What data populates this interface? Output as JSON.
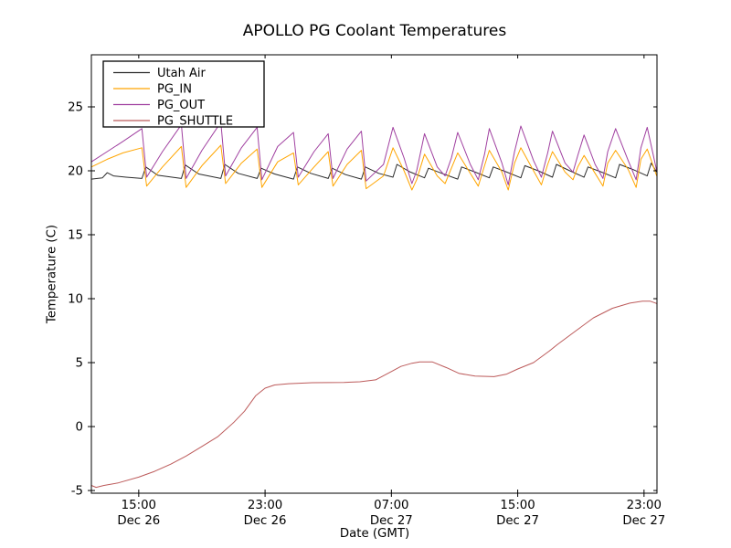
{
  "chart_data": {
    "type": "line",
    "title": "APOLLO PG Coolant Temperatures",
    "xlabel": "Date (GMT)",
    "ylabel": "Temperature (C)",
    "x_unit": "hours since Dec 26 12:00 GMT",
    "xlim": [
      0,
      35.82
    ],
    "ylim": [
      -5.21,
      29.07
    ],
    "grid": false,
    "legend_position": "upper left",
    "frame_color": "#000000",
    "background_color": "#ffffff",
    "yticks": [
      {
        "value": -5,
        "label": "-5"
      },
      {
        "value": 0,
        "label": "0"
      },
      {
        "value": 5,
        "label": "5"
      },
      {
        "value": 10,
        "label": "10"
      },
      {
        "value": 15,
        "label": "15"
      },
      {
        "value": 20,
        "label": "20"
      },
      {
        "value": 25,
        "label": "25"
      }
    ],
    "xticks": [
      {
        "t": 3,
        "time": "15:00",
        "date": "Dec 26"
      },
      {
        "t": 11,
        "time": "23:00",
        "date": "Dec 26"
      },
      {
        "t": 19,
        "time": "07:00",
        "date": "Dec 27"
      },
      {
        "t": 27,
        "time": "15:00",
        "date": "Dec 27"
      },
      {
        "t": 35,
        "time": "23:00",
        "date": "Dec 27"
      }
    ],
    "series": [
      {
        "name": "Utah Air",
        "color": "#2b2b2b",
        "points": [
          [
            0,
            19.35
          ],
          [
            0.7,
            19.45
          ],
          [
            1.0,
            19.85
          ],
          [
            1.4,
            19.6
          ],
          [
            2.2,
            19.5
          ],
          [
            3.2,
            19.4
          ],
          [
            3.45,
            20.3
          ],
          [
            4.2,
            19.65
          ],
          [
            5.7,
            19.4
          ],
          [
            5.95,
            20.45
          ],
          [
            6.8,
            19.75
          ],
          [
            8.2,
            19.4
          ],
          [
            8.45,
            20.5
          ],
          [
            9.3,
            19.8
          ],
          [
            10.5,
            19.4
          ],
          [
            10.75,
            20.2
          ],
          [
            11.6,
            19.75
          ],
          [
            12.8,
            19.35
          ],
          [
            13.05,
            20.3
          ],
          [
            13.9,
            19.8
          ],
          [
            15.0,
            19.4
          ],
          [
            15.25,
            20.2
          ],
          [
            16.1,
            19.7
          ],
          [
            17.1,
            19.35
          ],
          [
            17.35,
            20.3
          ],
          [
            18.2,
            19.8
          ],
          [
            19.1,
            19.5
          ],
          [
            19.35,
            20.5
          ],
          [
            20.2,
            19.9
          ],
          [
            21.1,
            19.45
          ],
          [
            21.35,
            20.2
          ],
          [
            22.2,
            19.8
          ],
          [
            23.2,
            19.35
          ],
          [
            23.45,
            20.3
          ],
          [
            24.3,
            19.9
          ],
          [
            25.2,
            19.45
          ],
          [
            25.45,
            20.3
          ],
          [
            26.3,
            19.9
          ],
          [
            27.2,
            19.45
          ],
          [
            27.45,
            20.4
          ],
          [
            28.3,
            20.0
          ],
          [
            29.2,
            19.5
          ],
          [
            29.45,
            20.5
          ],
          [
            30.3,
            20.0
          ],
          [
            31.2,
            19.5
          ],
          [
            31.45,
            20.3
          ],
          [
            32.3,
            19.9
          ],
          [
            33.2,
            19.45
          ],
          [
            33.45,
            20.5
          ],
          [
            34.3,
            20.1
          ],
          [
            35.2,
            19.6
          ],
          [
            35.45,
            20.6
          ],
          [
            35.8,
            19.9
          ]
        ]
      },
      {
        "name": "PG_IN",
        "color": "#ffa500",
        "points": [
          [
            0,
            20.3
          ],
          [
            1,
            20.9
          ],
          [
            2,
            21.4
          ],
          [
            3.2,
            21.8
          ],
          [
            3.5,
            18.8
          ],
          [
            4.5,
            20.3
          ],
          [
            5.7,
            21.9
          ],
          [
            6.0,
            18.7
          ],
          [
            7.0,
            20.4
          ],
          [
            8.2,
            22.0
          ],
          [
            8.5,
            19.0
          ],
          [
            9.5,
            20.6
          ],
          [
            10.5,
            21.7
          ],
          [
            10.8,
            18.7
          ],
          [
            11.8,
            20.7
          ],
          [
            12.8,
            21.4
          ],
          [
            13.1,
            18.9
          ],
          [
            14.1,
            20.3
          ],
          [
            15.0,
            21.5
          ],
          [
            15.3,
            18.8
          ],
          [
            16.2,
            20.5
          ],
          [
            17.1,
            21.6
          ],
          [
            17.4,
            18.6
          ],
          [
            18.5,
            19.6
          ],
          [
            19.1,
            21.8
          ],
          [
            19.8,
            20.0
          ],
          [
            20.3,
            18.5
          ],
          [
            20.6,
            19.3
          ],
          [
            21.1,
            21.3
          ],
          [
            21.9,
            19.6
          ],
          [
            22.4,
            19.0
          ],
          [
            22.8,
            20.2
          ],
          [
            23.2,
            21.4
          ],
          [
            24.0,
            19.8
          ],
          [
            24.5,
            18.8
          ],
          [
            24.9,
            20.4
          ],
          [
            25.2,
            21.6
          ],
          [
            26.0,
            19.9
          ],
          [
            26.4,
            18.5
          ],
          [
            26.8,
            20.6
          ],
          [
            27.2,
            21.8
          ],
          [
            28.0,
            20.0
          ],
          [
            28.5,
            18.9
          ],
          [
            28.9,
            20.5
          ],
          [
            29.2,
            21.5
          ],
          [
            30.0,
            19.9
          ],
          [
            30.5,
            19.3
          ],
          [
            30.8,
            20.3
          ],
          [
            31.2,
            21.2
          ],
          [
            31.9,
            19.8
          ],
          [
            32.4,
            18.8
          ],
          [
            32.7,
            20.6
          ],
          [
            33.2,
            21.6
          ],
          [
            34.0,
            20.1
          ],
          [
            34.5,
            18.7
          ],
          [
            34.8,
            20.9
          ],
          [
            35.2,
            21.7
          ],
          [
            35.8,
            19.6
          ]
        ]
      },
      {
        "name": "PG_OUT",
        "color": "#a040a0",
        "points": [
          [
            0,
            20.7
          ],
          [
            1,
            21.5
          ],
          [
            2,
            22.3
          ],
          [
            3.2,
            23.3
          ],
          [
            3.5,
            19.5
          ],
          [
            4.5,
            21.5
          ],
          [
            5.7,
            23.6
          ],
          [
            6.0,
            19.4
          ],
          [
            7.0,
            21.6
          ],
          [
            8.2,
            23.8
          ],
          [
            8.5,
            19.6
          ],
          [
            9.5,
            21.8
          ],
          [
            10.5,
            23.4
          ],
          [
            10.8,
            19.3
          ],
          [
            11.8,
            21.9
          ],
          [
            12.8,
            23.0
          ],
          [
            13.1,
            19.5
          ],
          [
            14.1,
            21.5
          ],
          [
            15.0,
            22.9
          ],
          [
            15.3,
            19.4
          ],
          [
            16.2,
            21.7
          ],
          [
            17.1,
            23.1
          ],
          [
            17.4,
            19.2
          ],
          [
            18.5,
            20.5
          ],
          [
            19.1,
            23.4
          ],
          [
            19.8,
            21.0
          ],
          [
            20.3,
            19.0
          ],
          [
            20.6,
            20.0
          ],
          [
            21.1,
            22.9
          ],
          [
            21.9,
            20.3
          ],
          [
            22.4,
            19.6
          ],
          [
            22.8,
            21.0
          ],
          [
            23.2,
            23.0
          ],
          [
            24.0,
            20.5
          ],
          [
            24.5,
            19.3
          ],
          [
            24.9,
            21.3
          ],
          [
            25.2,
            23.3
          ],
          [
            26.0,
            20.6
          ],
          [
            26.4,
            18.9
          ],
          [
            26.8,
            21.5
          ],
          [
            27.2,
            23.5
          ],
          [
            28.0,
            20.8
          ],
          [
            28.5,
            19.5
          ],
          [
            28.9,
            21.4
          ],
          [
            29.2,
            23.1
          ],
          [
            30.0,
            20.6
          ],
          [
            30.5,
            19.9
          ],
          [
            30.8,
            21.2
          ],
          [
            31.2,
            22.8
          ],
          [
            31.9,
            20.5
          ],
          [
            32.4,
            19.4
          ],
          [
            32.7,
            21.5
          ],
          [
            33.2,
            23.3
          ],
          [
            34.0,
            20.8
          ],
          [
            34.5,
            19.3
          ],
          [
            34.8,
            21.8
          ],
          [
            35.2,
            23.4
          ],
          [
            35.8,
            20.0
          ]
        ]
      },
      {
        "name": "PG_SHUTTLE",
        "color": "#bc5a5a",
        "points": [
          [
            0,
            -4.6
          ],
          [
            0.3,
            -4.75
          ],
          [
            0.8,
            -4.6
          ],
          [
            1.7,
            -4.4
          ],
          [
            3.0,
            -3.95
          ],
          [
            4.0,
            -3.5
          ],
          [
            5.0,
            -2.95
          ],
          [
            6.0,
            -2.3
          ],
          [
            7.0,
            -1.55
          ],
          [
            8.0,
            -0.8
          ],
          [
            9.0,
            0.3
          ],
          [
            9.7,
            1.2
          ],
          [
            10.4,
            2.4
          ],
          [
            11.0,
            3.0
          ],
          [
            11.6,
            3.25
          ],
          [
            12.5,
            3.35
          ],
          [
            14.0,
            3.43
          ],
          [
            16.0,
            3.45
          ],
          [
            17.0,
            3.5
          ],
          [
            18.0,
            3.65
          ],
          [
            19.0,
            4.3
          ],
          [
            19.6,
            4.7
          ],
          [
            20.3,
            4.95
          ],
          [
            20.8,
            5.05
          ],
          [
            21.6,
            5.05
          ],
          [
            22.5,
            4.6
          ],
          [
            23.3,
            4.15
          ],
          [
            24.3,
            3.95
          ],
          [
            25.5,
            3.9
          ],
          [
            26.3,
            4.1
          ],
          [
            27.0,
            4.5
          ],
          [
            28.0,
            5.0
          ],
          [
            29.0,
            5.9
          ],
          [
            29.5,
            6.4
          ],
          [
            30.7,
            7.5
          ],
          [
            31.8,
            8.5
          ],
          [
            33.0,
            9.25
          ],
          [
            34.1,
            9.65
          ],
          [
            34.9,
            9.8
          ],
          [
            35.4,
            9.8
          ],
          [
            35.8,
            9.62
          ]
        ]
      }
    ],
    "legend": [
      "Utah Air",
      "PG_IN",
      "PG_OUT",
      "PG_SHUTTLE"
    ]
  }
}
